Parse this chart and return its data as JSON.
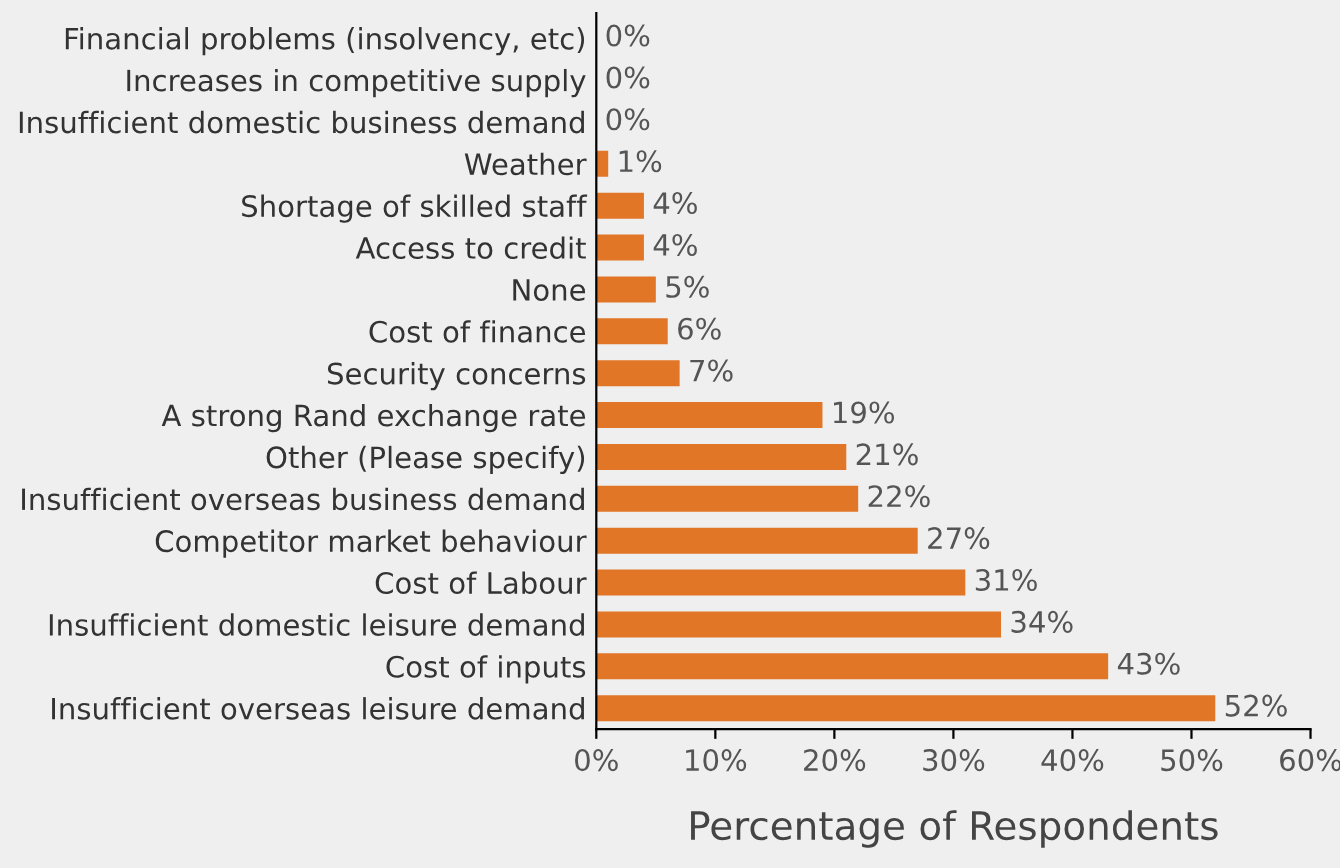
{
  "chart_data": {
    "type": "bar",
    "orientation": "horizontal",
    "xlabel": "Percentage of Respondents",
    "categories": [
      "Financial problems (insolvency, etc)",
      "Increases in competitive supply",
      "Insufficient domestic business demand",
      "Weather",
      "Shortage of skilled staff",
      "Access to credit",
      "None",
      "Cost of finance",
      "Security concerns",
      "A strong Rand exchange rate",
      "Other (Please specify)",
      "Insufficient overseas business demand",
      "Competitor market behaviour",
      "Cost of Labour",
      "Insufficient domestic leisure demand",
      "Cost of inputs",
      "Insufficient overseas leisure demand"
    ],
    "values": [
      0,
      0,
      0,
      1,
      4,
      4,
      5,
      6,
      7,
      19,
      21,
      22,
      27,
      31,
      34,
      43,
      52
    ],
    "value_labels": [
      "0%",
      "0%",
      "0%",
      "1%",
      "4%",
      "4%",
      "5%",
      "6%",
      "7%",
      "19%",
      "21%",
      "22%",
      "27%",
      "31%",
      "34%",
      "43%",
      "52%"
    ],
    "color": "#e07626",
    "xlim": [
      0,
      60
    ],
    "xticks": [
      {
        "value": 0,
        "label": "0%"
      },
      {
        "value": 10,
        "label": "10%"
      },
      {
        "value": 20,
        "label": "20%"
      },
      {
        "value": 30,
        "label": "30%"
      },
      {
        "value": 40,
        "label": "40%"
      },
      {
        "value": 50,
        "label": "50%"
      },
      {
        "value": 60,
        "label": "60%"
      }
    ],
    "grid": false,
    "legend": false
  }
}
